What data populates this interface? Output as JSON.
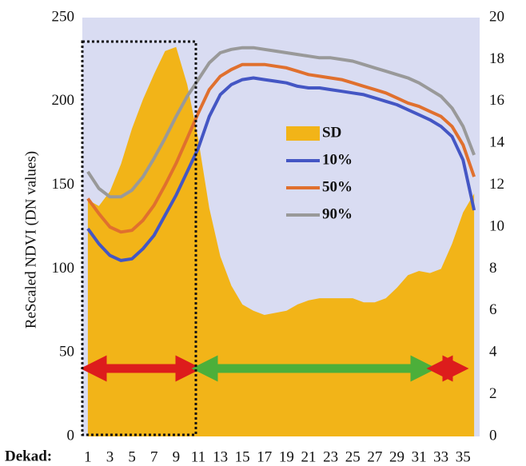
{
  "chart_data": {
    "type": "line",
    "y_label": "ReScaled NDVI (DN values)",
    "x_label": "Dekad:",
    "categories": [
      1,
      null,
      3,
      null,
      5,
      null,
      7,
      null,
      9,
      null,
      11,
      null,
      13,
      null,
      15,
      null,
      17,
      null,
      19,
      null,
      21,
      null,
      23,
      null,
      25,
      null,
      27,
      null,
      29,
      null,
      31,
      null,
      33,
      null,
      35,
      null
    ],
    "ylim": [
      0,
      250
    ],
    "yticks": [
      0,
      50,
      100,
      150,
      200,
      250
    ],
    "y2lim": [
      0,
      20
    ],
    "y2ticks": [
      0,
      2,
      4,
      6,
      8,
      10,
      12,
      14,
      16,
      18,
      20
    ],
    "background": "#d9dcf2",
    "series": [
      {
        "name": "SD",
        "type": "area",
        "axis": "y2",
        "color": "#f2b418",
        "values": [
          11.3,
          11.0,
          11.7,
          13.0,
          14.7,
          16.1,
          17.3,
          18.4,
          18.6,
          16.8,
          14.2,
          10.9,
          8.6,
          7.2,
          6.3,
          6.0,
          5.8,
          5.9,
          6.0,
          6.3,
          6.5,
          6.6,
          6.6,
          6.6,
          6.6,
          6.4,
          6.4,
          6.6,
          7.1,
          7.7,
          7.9,
          7.8,
          8.0,
          9.2,
          10.7,
          11.6
        ]
      },
      {
        "name": "10%",
        "color": "#4456c4",
        "values": [
          124,
          115,
          108,
          105,
          106,
          112,
          120,
          132,
          144,
          158,
          172,
          191,
          204,
          210,
          213,
          214,
          213,
          212,
          211,
          209,
          208,
          208,
          207,
          206,
          205,
          204,
          202,
          200,
          198,
          195,
          192,
          189,
          185,
          179,
          165,
          135
        ]
      },
      {
        "name": "50%",
        "color": "#e0702e",
        "values": [
          142,
          133,
          125,
          122,
          123,
          129,
          138,
          150,
          163,
          178,
          193,
          207,
          215,
          219,
          222,
          222,
          222,
          221,
          220,
          218,
          216,
          215,
          214,
          213,
          211,
          209,
          207,
          205,
          202,
          199,
          197,
          194,
          191,
          185,
          174,
          155
        ]
      },
      {
        "name": "90%",
        "color": "#999999",
        "values": [
          158,
          148,
          143,
          143,
          147,
          155,
          166,
          178,
          191,
          203,
          213,
          223,
          229,
          231,
          232,
          232,
          231,
          230,
          229,
          228,
          227,
          226,
          226,
          225,
          224,
          222,
          220,
          218,
          216,
          214,
          211,
          207,
          203,
          196,
          185,
          168
        ]
      }
    ]
  }
}
